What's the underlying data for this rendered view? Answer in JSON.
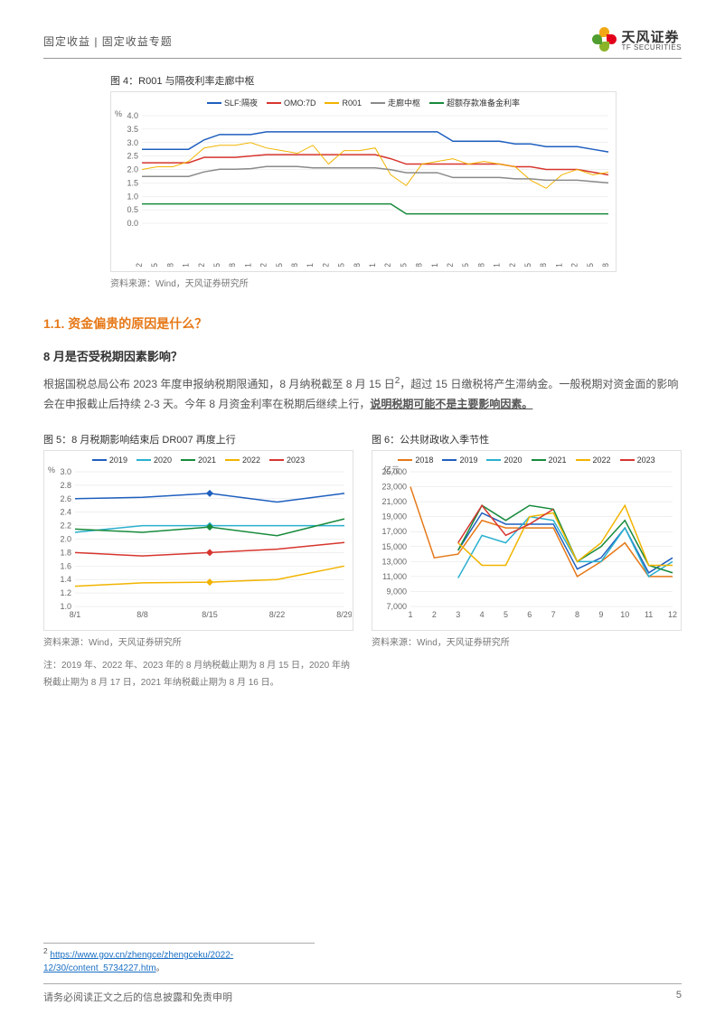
{
  "header": {
    "breadcrumb": "固定收益 | 固定收益专题",
    "logo_cn": "天风证券",
    "logo_en": "TF SECURITIES",
    "logo_colors": [
      "#f2a814",
      "#e2001a",
      "#8bb429",
      "#509e2f"
    ]
  },
  "fig4": {
    "title": "图 4：R001 与隔夜利率走廊中枢",
    "source": "资料来源：Wind，天风证券研究所",
    "type": "line",
    "y_unit": "%",
    "ylim": [
      0,
      4.0
    ],
    "ytick_step": 0.5,
    "x_labels": [
      "2016-02",
      "2016-05",
      "2016-08",
      "2016-11",
      "2017-02",
      "2017-05",
      "2017-08",
      "2017-11",
      "2018-02",
      "2018-05",
      "2018-08",
      "2018-11",
      "2019-02",
      "2019-05",
      "2019-08",
      "2019-11",
      "2020-02",
      "2020-05",
      "2020-08",
      "2020-11",
      "2021-02",
      "2021-05",
      "2021-08",
      "2021-11",
      "2022-02",
      "2022-05",
      "2022-08",
      "2022-11",
      "2023-02",
      "2023-05",
      "2023-08"
    ],
    "grid_color": "#e0e0e0",
    "background_color": "#ffffff",
    "series": [
      {
        "name": "SLF:隔夜",
        "color": "#1f5fbf",
        "width": 1.5,
        "values": [
          2.75,
          2.75,
          2.75,
          2.75,
          3.1,
          3.3,
          3.3,
          3.3,
          3.4,
          3.4,
          3.4,
          3.4,
          3.4,
          3.4,
          3.4,
          3.4,
          3.4,
          3.4,
          3.4,
          3.4,
          3.05,
          3.05,
          3.05,
          3.05,
          2.95,
          2.95,
          2.85,
          2.85,
          2.85,
          2.75,
          2.65
        ]
      },
      {
        "name": "OMO:7D",
        "color": "#d7362f",
        "width": 1.5,
        "values": [
          2.25,
          2.25,
          2.25,
          2.25,
          2.45,
          2.45,
          2.45,
          2.5,
          2.55,
          2.55,
          2.55,
          2.55,
          2.55,
          2.55,
          2.55,
          2.55,
          2.4,
          2.2,
          2.2,
          2.2,
          2.2,
          2.2,
          2.2,
          2.2,
          2.1,
          2.1,
          2.0,
          2.0,
          2.0,
          1.9,
          1.8
        ]
      },
      {
        "name": "R001",
        "color": "#f2b400",
        "width": 1,
        "values": [
          2.0,
          2.1,
          2.1,
          2.3,
          2.8,
          2.9,
          2.9,
          3.0,
          2.8,
          2.7,
          2.6,
          2.9,
          2.2,
          2.7,
          2.7,
          2.8,
          1.8,
          1.4,
          2.2,
          2.3,
          2.4,
          2.2,
          2.3,
          2.2,
          2.1,
          1.6,
          1.3,
          1.8,
          2.0,
          1.8,
          1.9
        ]
      },
      {
        "name": "走廊中枢",
        "color": "#8a8a8a",
        "width": 1.5,
        "values": [
          1.74,
          1.74,
          1.74,
          1.74,
          1.91,
          2.01,
          2.01,
          2.03,
          2.11,
          2.11,
          2.11,
          2.06,
          2.06,
          2.06,
          2.06,
          2.06,
          1.99,
          1.88,
          1.88,
          1.88,
          1.7,
          1.7,
          1.7,
          1.7,
          1.65,
          1.65,
          1.6,
          1.6,
          1.6,
          1.55,
          1.5
        ]
      },
      {
        "name": "超额存款准备金利率",
        "color": "#178a3c",
        "width": 1.5,
        "values": [
          0.72,
          0.72,
          0.72,
          0.72,
          0.72,
          0.72,
          0.72,
          0.72,
          0.72,
          0.72,
          0.72,
          0.72,
          0.72,
          0.72,
          0.72,
          0.72,
          0.72,
          0.35,
          0.35,
          0.35,
          0.35,
          0.35,
          0.35,
          0.35,
          0.35,
          0.35,
          0.35,
          0.35,
          0.35,
          0.35,
          0.35
        ]
      }
    ]
  },
  "section": {
    "h2": "1.1. 资金偏贵的原因是什么？",
    "h3": "8 月是否受税期因素影响？",
    "p1_a": "根据国税总局公布 2023 年度申报纳税期限通知，8 月纳税截至 8 月 15 日",
    "p1_sup": "2",
    "p1_b": "，超过 15 日缴税将产生滞纳金。一般税期对资金面的影响会在申报截止后持续 2-3 天。今年 8 月资金利率在税期后继续上行，",
    "p1_c": "说明税期可能不是主要影响因素。"
  },
  "fig5": {
    "title": "图 5：8 月税期影响结束后 DR007 再度上行",
    "source": "资料来源：Wind，天风证券研究所",
    "note": "注：2019 年、2022 年、2023 年的 8 月纳税截止期为 8 月 15 日，2020 年纳税截止期为 8 月 17 日，2021 年纳税截止期为 8 月 16 日。",
    "type": "line",
    "y_unit": "%",
    "ylim": [
      1.0,
      3.0
    ],
    "ytick_step": 0.2,
    "x_labels": [
      "8/1",
      "8/8",
      "8/15",
      "8/22",
      "8/29"
    ],
    "grid_color": "#e0e0e0",
    "background_color": "#ffffff",
    "markers": [
      {
        "series": "2019",
        "x": 2,
        "y": 2.68,
        "color": "#1f5fbf"
      },
      {
        "series": "2020",
        "x": 2,
        "y": 2.2,
        "color": "#29b0cf"
      },
      {
        "series": "2021",
        "x": 2,
        "y": 2.18,
        "color": "#178a3c"
      },
      {
        "series": "2022",
        "x": 2,
        "y": 1.36,
        "color": "#f2b400"
      },
      {
        "series": "2023",
        "x": 2,
        "y": 1.8,
        "color": "#d7362f"
      }
    ],
    "series": [
      {
        "name": "2019",
        "color": "#1f5fbf",
        "width": 1.5,
        "values": [
          2.6,
          2.62,
          2.68,
          2.55,
          2.68
        ]
      },
      {
        "name": "2020",
        "color": "#29b0cf",
        "width": 1.5,
        "values": [
          2.1,
          2.2,
          2.2,
          2.2,
          2.2
        ]
      },
      {
        "name": "2021",
        "color": "#178a3c",
        "width": 1.5,
        "values": [
          2.15,
          2.1,
          2.18,
          2.05,
          2.3
        ]
      },
      {
        "name": "2022",
        "color": "#f2b400",
        "width": 1.5,
        "values": [
          1.3,
          1.35,
          1.36,
          1.4,
          1.6
        ]
      },
      {
        "name": "2023",
        "color": "#d7362f",
        "width": 1.5,
        "values": [
          1.8,
          1.75,
          1.8,
          1.85,
          1.95
        ]
      }
    ]
  },
  "fig6": {
    "title": "图 6：公共财政收入季节性",
    "source": "资料来源：Wind，天风证券研究所",
    "type": "line",
    "y_unit": "亿元",
    "ylim": [
      7000,
      25000
    ],
    "ytick_step": 2000,
    "x_labels": [
      "1",
      "2",
      "3",
      "4",
      "5",
      "6",
      "7",
      "8",
      "9",
      "10",
      "11",
      "12"
    ],
    "grid_color": "#e0e0e0",
    "background_color": "#ffffff",
    "series": [
      {
        "name": "2018",
        "color": "#e67817",
        "width": 1.5,
        "values": [
          23000,
          13500,
          14000,
          18500,
          17500,
          17500,
          17500,
          11000,
          13000,
          15500,
          11000,
          11000
        ]
      },
      {
        "name": "2019",
        "color": "#1f5fbf",
        "width": 1.5,
        "values": [
          null,
          null,
          14500,
          19500,
          18000,
          18000,
          18000,
          12000,
          13500,
          17500,
          11500,
          13500
        ]
      },
      {
        "name": "2020",
        "color": "#29b0cf",
        "width": 1.5,
        "values": [
          null,
          null,
          10800,
          16500,
          15500,
          19000,
          18500,
          13000,
          13000,
          17500,
          11000,
          13000
        ]
      },
      {
        "name": "2021",
        "color": "#178a3c",
        "width": 1.5,
        "values": [
          null,
          null,
          14500,
          20500,
          18500,
          20500,
          20000,
          13000,
          15000,
          18500,
          12500,
          11500
        ]
      },
      {
        "name": "2022",
        "color": "#f2b400",
        "width": 1.5,
        "values": [
          null,
          null,
          15500,
          12500,
          12500,
          19000,
          19500,
          13000,
          15500,
          20500,
          12500,
          12500
        ]
      },
      {
        "name": "2023",
        "color": "#d7362f",
        "width": 1.5,
        "values": [
          null,
          null,
          15500,
          20500,
          16500,
          18000,
          20000,
          null,
          null,
          null,
          null,
          null
        ]
      }
    ]
  },
  "footnote": {
    "num": "2",
    "url": "https://www.gov.cn/zhengce/zhengceku/2022-12/30/content_5734227.htm",
    "suffix": "。"
  },
  "footer": {
    "disclaimer": "请务必阅读正文之后的信息披露和免责申明",
    "page": "5"
  }
}
